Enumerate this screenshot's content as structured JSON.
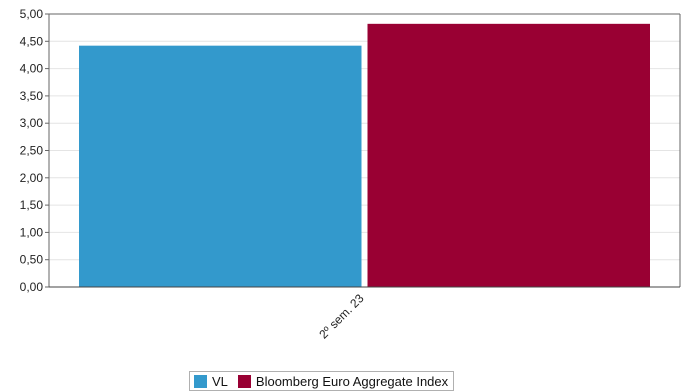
{
  "chart_data": {
    "type": "bar",
    "categories": [
      "2º sem. 23"
    ],
    "series": [
      {
        "name": "VL",
        "values": [
          4.42
        ],
        "color": "#3399cc"
      },
      {
        "name": "Bloomberg Euro Aggregate Index",
        "values": [
          4.82
        ],
        "color": "#990033"
      }
    ],
    "ylim": [
      0,
      5
    ],
    "yticks": [
      "0,00",
      "0,50",
      "1,00",
      "1,50",
      "2,00",
      "2,50",
      "3,00",
      "3,50",
      "4,00",
      "4,50",
      "5,00"
    ],
    "grid": true,
    "legend_position": "bottom-center"
  }
}
